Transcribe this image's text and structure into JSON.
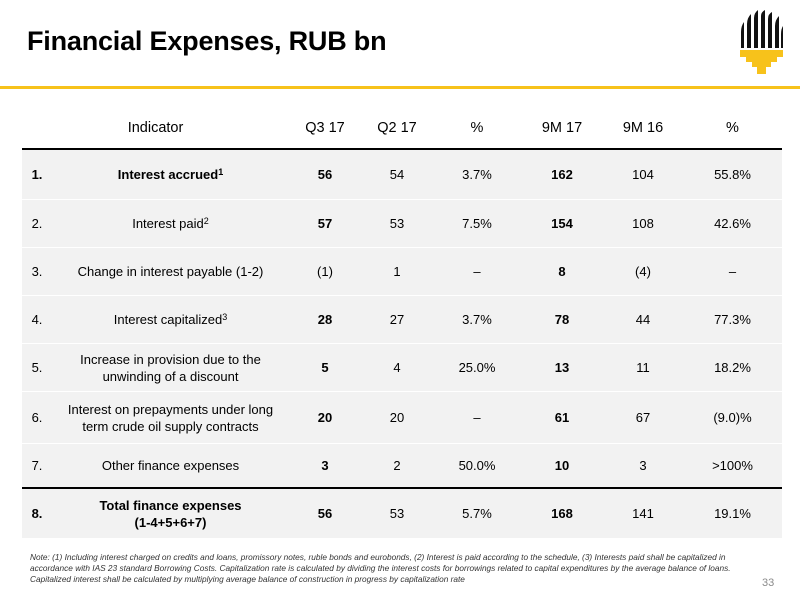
{
  "title": "Financial Expenses, RUB bn",
  "table": {
    "headers": [
      "Indicator",
      "Q3 17",
      "Q2 17",
      "%",
      "9M 17",
      "9M 16",
      "%"
    ],
    "rows": [
      {
        "num": "1.",
        "label": "Interest accrued",
        "sup": "1",
        "q317": "56",
        "q217": "54",
        "pct1": "3.7%",
        "m917": "162",
        "m916": "104",
        "pct2": "55.8%"
      },
      {
        "num": "2.",
        "label": "Interest paid",
        "sup": "2",
        "q317": "57",
        "q217": "53",
        "pct1": "7.5%",
        "m917": "154",
        "m916": "108",
        "pct2": "42.6%"
      },
      {
        "num": "3.",
        "label": "Change in interest payable (1-2)",
        "q317": "(1)",
        "q217": "1",
        "pct1": "–",
        "m917": "8",
        "m916": "(4)",
        "pct2": "–"
      },
      {
        "num": "4.",
        "label": "Interest capitalized",
        "sup": "3",
        "q317": "28",
        "q217": "27",
        "pct1": "3.7%",
        "m917": "78",
        "m916": "44",
        "pct2": "77.3%"
      },
      {
        "num": "5.",
        "label_line1": "Increase in provision due to the",
        "label_line2": "unwinding of a discount",
        "q317": "5",
        "q217": "4",
        "pct1": "25.0%",
        "m917": "13",
        "m916": "11",
        "pct2": "18.2%"
      },
      {
        "num": "6.",
        "label_line1": "Interest on prepayments under long",
        "label_line2": "term crude oil supply contracts",
        "q317": "20",
        "q217": "20",
        "pct1": "–",
        "m917": "61",
        "m916": "67",
        "pct2": "(9.0)%"
      },
      {
        "num": "7.",
        "label": "Other finance expenses",
        "q317": "3",
        "q217": "2",
        "pct1": "50.0%",
        "m917": "10",
        "m916": "3",
        "pct2": ">100%"
      },
      {
        "num": "8.",
        "label_line1": "Total finance expenses",
        "label_line2": "(1-4+5+6+7)",
        "q317": "56",
        "q217": "53",
        "pct1": "5.7%",
        "m917": "168",
        "m916": "141",
        "pct2": "19.1%"
      }
    ]
  },
  "note": "Note: (1) Including interest charged on credits and loans, promissory notes, ruble bonds and eurobonds, (2) Interest is paid according to the schedule, (3) Interests paid shall be capitalized in accordance with IAS 23 standard Borrowing Costs. Capitalization rate is calculated by dividing the interest costs for borrowings related to capital expenditures by the average balance of loans. Capitalized interest shall be calculated by multiplying average balance of construction in progress by capitalization rate",
  "page_number": "33",
  "colors": {
    "accent": "#f7c21b",
    "logo_dark": "#111111",
    "row_shade": "#f2f2f2"
  },
  "logo_icon": "rosneft-logo-icon"
}
